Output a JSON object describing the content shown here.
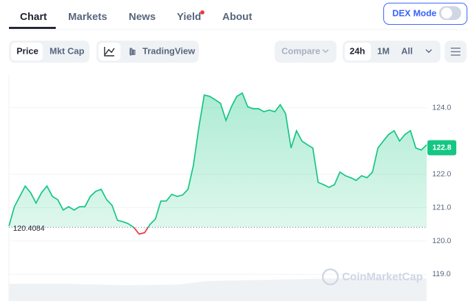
{
  "nav": {
    "tabs": [
      "Chart",
      "Markets",
      "News",
      "Yield",
      "About"
    ],
    "dex_mode": "DEX Mode"
  },
  "toolbar": {
    "price": "Price",
    "mkt_cap": "Mkt Cap",
    "tradingview": "TradingView",
    "compare": "Compare",
    "ranges": [
      "24h",
      "1M",
      "All"
    ]
  },
  "chart_data": {
    "type": "line",
    "color": "#16c784",
    "below_color": "#ea3943",
    "values": [
      120.45,
      121.03,
      121.34,
      121.65,
      121.45,
      121.14,
      121.45,
      121.65,
      121.34,
      121.24,
      120.93,
      121.03,
      120.93,
      121.03,
      121.03,
      121.34,
      121.49,
      121.55,
      121.24,
      121.07,
      120.62,
      120.58,
      120.52,
      120.41,
      120.21,
      120.25,
      120.5,
      120.66,
      121.2,
      121.2,
      121.4,
      121.34,
      121.38,
      121.55,
      122.27,
      123.41,
      124.38,
      124.34,
      124.24,
      124.13,
      123.62,
      124.03,
      124.34,
      124.44,
      124.03,
      123.97,
      123.97,
      123.88,
      123.93,
      123.88,
      124.09,
      123.82,
      122.79,
      123.31,
      123.0,
      122.89,
      122.79,
      121.76,
      121.69,
      121.61,
      121.69,
      122.07,
      121.96,
      121.9,
      121.82,
      121.96,
      121.9,
      122.07,
      122.79,
      123.0,
      123.2,
      123.31,
      123.0,
      123.2,
      123.31,
      122.79,
      122.73,
      122.89
    ],
    "ylim": [
      118.2,
      125
    ],
    "yticks": [
      {
        "value": 119,
        "label": "119.0"
      },
      {
        "value": 120,
        "label": "120.0"
      },
      {
        "value": 121,
        "label": "121.0"
      },
      {
        "value": 122,
        "label": "122.0"
      },
      {
        "value": 124,
        "label": "124.0"
      }
    ],
    "grid": true,
    "baseline": 120.4084,
    "last_value": 122.8,
    "watermark": "CoinMarketCap"
  }
}
